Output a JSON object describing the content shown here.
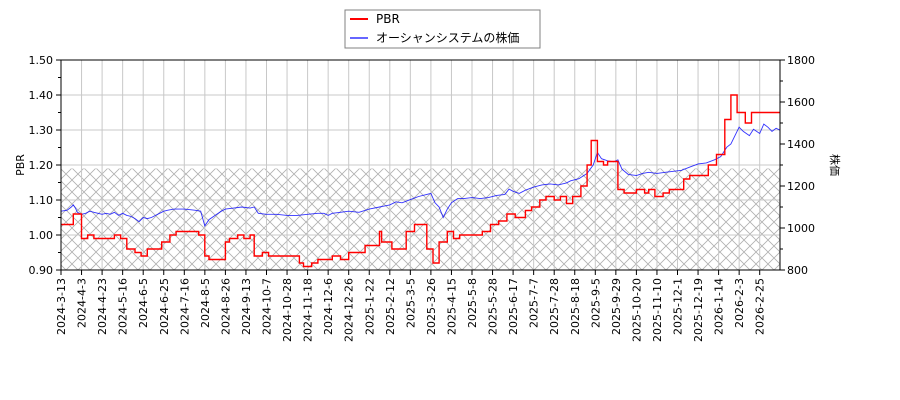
{
  "chart_data": {
    "type": "line",
    "title": "",
    "legend": {
      "position": "top-center",
      "entries": [
        {
          "label": "PBR",
          "color": "#ff0000"
        },
        {
          "label": "オーシャンシステムの株価",
          "color": "#0000ff"
        }
      ]
    },
    "xlabel": "",
    "ylabel_left": "PBR",
    "ylabel_right": "株価",
    "ylim_left": [
      0.9,
      1.5
    ],
    "ylim_right": [
      800,
      1800
    ],
    "yticks_left": [
      "0.90",
      "1.00",
      "1.10",
      "1.20",
      "1.30",
      "1.40",
      "1.50"
    ],
    "yticks_right": [
      "800",
      "1000",
      "1200",
      "1400",
      "1600",
      "1800"
    ],
    "grid": true,
    "hatched_region": {
      "description": "cross-hatched band below PBR 1.19",
      "ymax_left": 1.19
    },
    "x_tick_labels": [
      "2024-3-13",
      "2024-4-3",
      "2024-4-23",
      "2024-5-16",
      "2024-6-5",
      "2024-6-25",
      "2024-7-16",
      "2024-8-5",
      "2024-8-26",
      "2024-9-13",
      "2024-10-7",
      "2024-10-28",
      "2024-11-18",
      "2024-12-6",
      "2024-12-26",
      "2025-1-22",
      "2025-2-12",
      "2025-3-5",
      "2025-3-26",
      "2025-4-15",
      "2025-5-8",
      "2025-5-28",
      "2025-6-17",
      "2025-7-7",
      "2025-7-28",
      "2025-8-18",
      "2025-9-5",
      "2025-9-29",
      "2025-10-20",
      "2025-11-10",
      "2025-12-1",
      "2025-12-19",
      "2026-1-14",
      "2026-2-3",
      "2026-2-25"
    ],
    "series": [
      {
        "name": "PBR",
        "axis": "left",
        "color": "#ff0000",
        "step": true,
        "points": [
          [
            0.0,
            1.03
          ],
          [
            0.6,
            1.03
          ],
          [
            0.6,
            1.06
          ],
          [
            1.0,
            1.06
          ],
          [
            1.0,
            0.99
          ],
          [
            1.3,
            0.99
          ],
          [
            1.3,
            1.0
          ],
          [
            1.6,
            1.0
          ],
          [
            1.6,
            0.99
          ],
          [
            2.6,
            0.99
          ],
          [
            2.6,
            1.0
          ],
          [
            2.9,
            1.0
          ],
          [
            2.9,
            0.99
          ],
          [
            3.2,
            0.99
          ],
          [
            3.2,
            0.96
          ],
          [
            3.6,
            0.96
          ],
          [
            3.6,
            0.95
          ],
          [
            3.9,
            0.95
          ],
          [
            3.9,
            0.94
          ],
          [
            4.2,
            0.94
          ],
          [
            4.2,
            0.96
          ],
          [
            4.9,
            0.96
          ],
          [
            4.9,
            0.98
          ],
          [
            5.3,
            0.98
          ],
          [
            5.3,
            1.0
          ],
          [
            5.6,
            1.0
          ],
          [
            5.6,
            1.01
          ],
          [
            6.7,
            1.01
          ],
          [
            6.7,
            1.0
          ],
          [
            7.0,
            1.0
          ],
          [
            7.0,
            0.94
          ],
          [
            7.2,
            0.94
          ],
          [
            7.2,
            0.93
          ],
          [
            8.0,
            0.93
          ],
          [
            8.0,
            0.98
          ],
          [
            8.2,
            0.98
          ],
          [
            8.2,
            0.99
          ],
          [
            8.6,
            0.99
          ],
          [
            8.6,
            1.0
          ],
          [
            8.9,
            1.0
          ],
          [
            8.9,
            0.99
          ],
          [
            9.2,
            0.99
          ],
          [
            9.2,
            1.0
          ],
          [
            9.4,
            1.0
          ],
          [
            9.4,
            0.94
          ],
          [
            9.8,
            0.94
          ],
          [
            9.8,
            0.95
          ],
          [
            10.1,
            0.95
          ],
          [
            10.1,
            0.94
          ],
          [
            11.6,
            0.94
          ],
          [
            11.6,
            0.92
          ],
          [
            11.8,
            0.92
          ],
          [
            11.8,
            0.91
          ],
          [
            12.2,
            0.91
          ],
          [
            12.2,
            0.92
          ],
          [
            12.5,
            0.92
          ],
          [
            12.5,
            0.93
          ],
          [
            13.2,
            0.93
          ],
          [
            13.2,
            0.94
          ],
          [
            13.6,
            0.94
          ],
          [
            13.6,
            0.93
          ],
          [
            14.0,
            0.93
          ],
          [
            14.0,
            0.95
          ],
          [
            14.8,
            0.95
          ],
          [
            14.8,
            0.97
          ],
          [
            15.5,
            0.97
          ],
          [
            15.5,
            1.01
          ],
          [
            15.6,
            1.01
          ],
          [
            15.6,
            0.98
          ],
          [
            16.1,
            0.98
          ],
          [
            16.1,
            0.96
          ],
          [
            16.8,
            0.96
          ],
          [
            16.8,
            1.01
          ],
          [
            17.2,
            1.01
          ],
          [
            17.2,
            1.03
          ],
          [
            17.8,
            1.03
          ],
          [
            17.8,
            0.96
          ],
          [
            18.1,
            0.96
          ],
          [
            18.1,
            0.92
          ],
          [
            18.4,
            0.92
          ],
          [
            18.4,
            0.98
          ],
          [
            18.8,
            0.98
          ],
          [
            18.8,
            1.01
          ],
          [
            19.1,
            1.01
          ],
          [
            19.1,
            0.99
          ],
          [
            19.4,
            0.99
          ],
          [
            19.4,
            1.0
          ],
          [
            20.5,
            1.0
          ],
          [
            20.5,
            1.01
          ],
          [
            20.9,
            1.01
          ],
          [
            20.9,
            1.03
          ],
          [
            21.3,
            1.03
          ],
          [
            21.3,
            1.04
          ],
          [
            21.7,
            1.04
          ],
          [
            21.7,
            1.06
          ],
          [
            22.1,
            1.06
          ],
          [
            22.1,
            1.05
          ],
          [
            22.6,
            1.05
          ],
          [
            22.6,
            1.07
          ],
          [
            22.9,
            1.07
          ],
          [
            22.9,
            1.08
          ],
          [
            23.3,
            1.08
          ],
          [
            23.3,
            1.1
          ],
          [
            23.6,
            1.1
          ],
          [
            23.6,
            1.11
          ],
          [
            24.0,
            1.11
          ],
          [
            24.0,
            1.1
          ],
          [
            24.3,
            1.1
          ],
          [
            24.3,
            1.11
          ],
          [
            24.6,
            1.11
          ],
          [
            24.6,
            1.09
          ],
          [
            24.9,
            1.09
          ],
          [
            24.9,
            1.11
          ],
          [
            25.3,
            1.11
          ],
          [
            25.3,
            1.14
          ],
          [
            25.6,
            1.14
          ],
          [
            25.6,
            1.2
          ],
          [
            25.8,
            1.2
          ],
          [
            25.8,
            1.27
          ],
          [
            26.1,
            1.27
          ],
          [
            26.1,
            1.21
          ],
          [
            26.4,
            1.21
          ],
          [
            26.4,
            1.2
          ],
          [
            26.6,
            1.2
          ],
          [
            26.6,
            1.21
          ],
          [
            27.1,
            1.21
          ],
          [
            27.1,
            1.13
          ],
          [
            27.4,
            1.13
          ],
          [
            27.4,
            1.12
          ],
          [
            28.0,
            1.12
          ],
          [
            28.0,
            1.13
          ],
          [
            28.4,
            1.13
          ],
          [
            28.4,
            1.12
          ],
          [
            28.6,
            1.12
          ],
          [
            28.6,
            1.13
          ],
          [
            28.9,
            1.13
          ],
          [
            28.9,
            1.11
          ],
          [
            29.3,
            1.11
          ],
          [
            29.3,
            1.12
          ],
          [
            29.6,
            1.12
          ],
          [
            29.6,
            1.13
          ],
          [
            30.3,
            1.13
          ],
          [
            30.3,
            1.16
          ],
          [
            30.6,
            1.16
          ],
          [
            30.6,
            1.17
          ],
          [
            31.5,
            1.17
          ],
          [
            31.5,
            1.2
          ],
          [
            31.9,
            1.2
          ],
          [
            31.9,
            1.23
          ],
          [
            32.3,
            1.23
          ],
          [
            32.3,
            1.33
          ],
          [
            32.6,
            1.33
          ],
          [
            32.6,
            1.4
          ],
          [
            32.9,
            1.4
          ],
          [
            32.9,
            1.35
          ],
          [
            33.3,
            1.35
          ],
          [
            33.3,
            1.32
          ],
          [
            33.6,
            1.32
          ],
          [
            33.6,
            1.35
          ],
          [
            35.0,
            1.35
          ]
        ]
      },
      {
        "name": "オーシャンシステムの株価",
        "axis": "right",
        "color": "#0000ff",
        "step": false,
        "points": [
          [
            0.0,
            1080
          ],
          [
            0.3,
            1085
          ],
          [
            0.5,
            1100
          ],
          [
            0.6,
            1110
          ],
          [
            0.7,
            1095
          ],
          [
            0.8,
            1075
          ],
          [
            1.0,
            1065
          ],
          [
            1.2,
            1070
          ],
          [
            1.4,
            1080
          ],
          [
            1.6,
            1075
          ],
          [
            1.8,
            1070
          ],
          [
            2.0,
            1065
          ],
          [
            2.2,
            1070
          ],
          [
            2.4,
            1065
          ],
          [
            2.6,
            1075
          ],
          [
            2.8,
            1060
          ],
          [
            3.0,
            1070
          ],
          [
            3.2,
            1060
          ],
          [
            3.4,
            1055
          ],
          [
            3.6,
            1045
          ],
          [
            3.8,
            1030
          ],
          [
            4.0,
            1050
          ],
          [
            4.2,
            1045
          ],
          [
            4.4,
            1050
          ],
          [
            4.6,
            1060
          ],
          [
            4.8,
            1070
          ],
          [
            5.0,
            1080
          ],
          [
            5.2,
            1085
          ],
          [
            5.5,
            1090
          ],
          [
            6.0,
            1090
          ],
          [
            6.5,
            1085
          ],
          [
            6.8,
            1080
          ],
          [
            7.0,
            1010
          ],
          [
            7.2,
            1040
          ],
          [
            7.5,
            1060
          ],
          [
            7.8,
            1080
          ],
          [
            8.0,
            1090
          ],
          [
            8.4,
            1095
          ],
          [
            8.8,
            1100
          ],
          [
            9.2,
            1095
          ],
          [
            9.4,
            1100
          ],
          [
            9.6,
            1070
          ],
          [
            10.0,
            1065
          ],
          [
            10.5,
            1065
          ],
          [
            11.0,
            1060
          ],
          [
            11.5,
            1060
          ],
          [
            12.0,
            1065
          ],
          [
            12.5,
            1070
          ],
          [
            12.8,
            1070
          ],
          [
            13.0,
            1060
          ],
          [
            13.2,
            1070
          ],
          [
            13.6,
            1075
          ],
          [
            14.0,
            1080
          ],
          [
            14.5,
            1075
          ],
          [
            15.0,
            1090
          ],
          [
            15.5,
            1100
          ],
          [
            16.0,
            1110
          ],
          [
            16.3,
            1125
          ],
          [
            16.6,
            1120
          ],
          [
            17.0,
            1135
          ],
          [
            17.4,
            1150
          ],
          [
            17.8,
            1160
          ],
          [
            18.0,
            1165
          ],
          [
            18.2,
            1120
          ],
          [
            18.4,
            1100
          ],
          [
            18.6,
            1050
          ],
          [
            18.8,
            1090
          ],
          [
            19.0,
            1120
          ],
          [
            19.3,
            1140
          ],
          [
            19.6,
            1140
          ],
          [
            20.0,
            1145
          ],
          [
            20.4,
            1140
          ],
          [
            20.8,
            1145
          ],
          [
            21.2,
            1155
          ],
          [
            21.6,
            1160
          ],
          [
            21.8,
            1185
          ],
          [
            22.0,
            1175
          ],
          [
            22.3,
            1165
          ],
          [
            22.6,
            1180
          ],
          [
            23.0,
            1195
          ],
          [
            23.4,
            1205
          ],
          [
            23.8,
            1210
          ],
          [
            24.2,
            1205
          ],
          [
            24.6,
            1215
          ],
          [
            24.8,
            1225
          ],
          [
            25.2,
            1235
          ],
          [
            25.6,
            1260
          ],
          [
            25.9,
            1300
          ],
          [
            26.1,
            1360
          ],
          [
            26.3,
            1330
          ],
          [
            26.6,
            1320
          ],
          [
            26.9,
            1315
          ],
          [
            27.1,
            1325
          ],
          [
            27.3,
            1280
          ],
          [
            27.6,
            1255
          ],
          [
            28.0,
            1250
          ],
          [
            28.3,
            1260
          ],
          [
            28.6,
            1265
          ],
          [
            29.0,
            1260
          ],
          [
            29.4,
            1265
          ],
          [
            29.8,
            1270
          ],
          [
            30.2,
            1275
          ],
          [
            30.6,
            1290
          ],
          [
            31.0,
            1305
          ],
          [
            31.4,
            1310
          ],
          [
            31.8,
            1325
          ],
          [
            32.1,
            1340
          ],
          [
            32.4,
            1385
          ],
          [
            32.6,
            1400
          ],
          [
            32.8,
            1440
          ],
          [
            33.0,
            1480
          ],
          [
            33.2,
            1460
          ],
          [
            33.5,
            1440
          ],
          [
            33.7,
            1470
          ],
          [
            34.0,
            1450
          ],
          [
            34.2,
            1495
          ],
          [
            34.4,
            1480
          ],
          [
            34.6,
            1460
          ],
          [
            34.8,
            1475
          ],
          [
            35.0,
            1465
          ]
        ]
      }
    ]
  }
}
